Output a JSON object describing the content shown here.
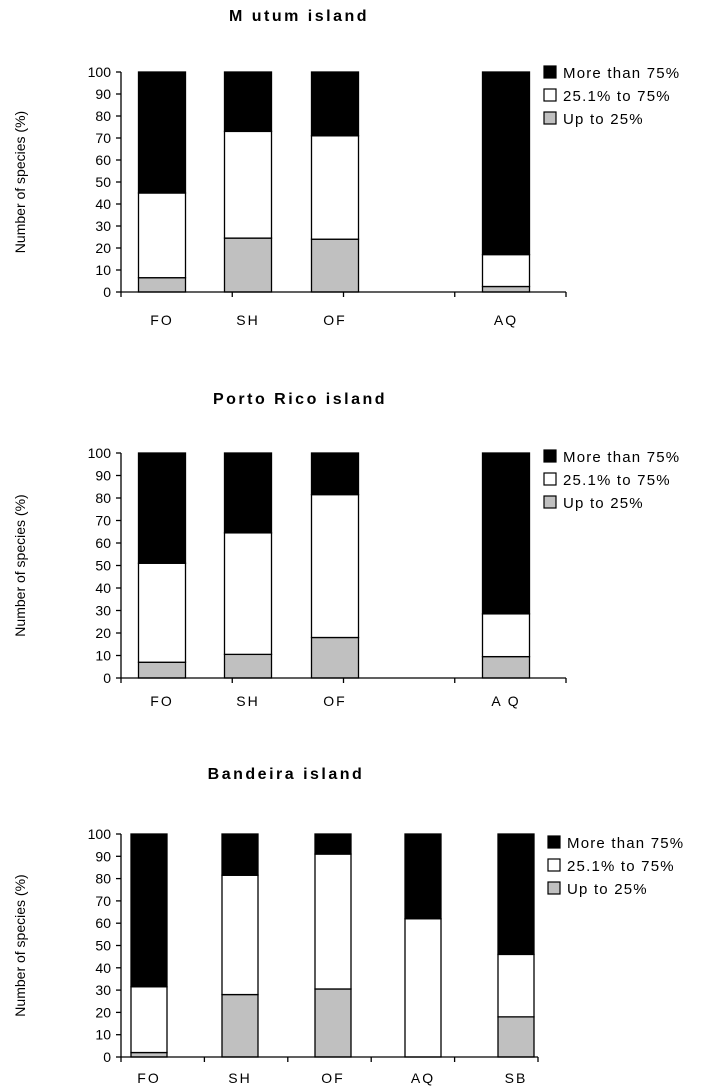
{
  "chart_data": [
    {
      "type": "bar",
      "stacked": true,
      "title": "M utum island",
      "ylabel": "Number of species (%)",
      "ylim": [
        0,
        100
      ],
      "yticks": [
        0,
        10,
        20,
        30,
        40,
        50,
        60,
        70,
        80,
        90,
        100
      ],
      "categories": [
        "FO",
        "SH",
        "OF",
        "AQ"
      ],
      "legend_position": "right",
      "grid": false,
      "series": [
        {
          "name": "Up to 25%",
          "color": "#c0c0c0",
          "values": [
            6.5,
            24.5,
            24,
            2.5
          ]
        },
        {
          "name": "25.1% to 75%",
          "color": "#ffffff",
          "values": [
            38.5,
            48.5,
            47,
            14.5
          ]
        },
        {
          "name": "More than 75%",
          "color": "#000000",
          "values": [
            55,
            27,
            29,
            83
          ]
        }
      ]
    },
    {
      "type": "bar",
      "stacked": true,
      "title": "Porto Rico island",
      "ylabel": "Number of species (%)",
      "ylim": [
        0,
        100
      ],
      "yticks": [
        0,
        10,
        20,
        30,
        40,
        50,
        60,
        70,
        80,
        90,
        100
      ],
      "categories": [
        "FO",
        "SH",
        "OF",
        "A Q"
      ],
      "legend_position": "right",
      "grid": false,
      "series": [
        {
          "name": "Up to 25%",
          "color": "#c0c0c0",
          "values": [
            7,
            10.5,
            18,
            9.5
          ]
        },
        {
          "name": "25.1% to 75%",
          "color": "#ffffff",
          "values": [
            44,
            54,
            63.5,
            19
          ]
        },
        {
          "name": "More than 75%",
          "color": "#000000",
          "values": [
            49,
            35.5,
            18.5,
            71.5
          ]
        }
      ]
    },
    {
      "type": "bar",
      "stacked": true,
      "title": "Bandeira island",
      "ylabel": "Number of species (%)",
      "ylim": [
        0,
        100
      ],
      "yticks": [
        0,
        10,
        20,
        30,
        40,
        50,
        60,
        70,
        80,
        90,
        100
      ],
      "categories": [
        "FO",
        "SH",
        "OF",
        "AQ",
        "SB"
      ],
      "legend_position": "right",
      "grid": false,
      "series": [
        {
          "name": "Up to 25%",
          "color": "#c0c0c0",
          "values": [
            2,
            28,
            30.5,
            0,
            18
          ]
        },
        {
          "name": "25.1% to 75%",
          "color": "#ffffff",
          "values": [
            29.5,
            53.5,
            60.5,
            62,
            28
          ]
        },
        {
          "name": "More than 75%",
          "color": "#000000",
          "values": [
            68.5,
            18.5,
            9,
            38,
            54
          ]
        }
      ]
    }
  ]
}
